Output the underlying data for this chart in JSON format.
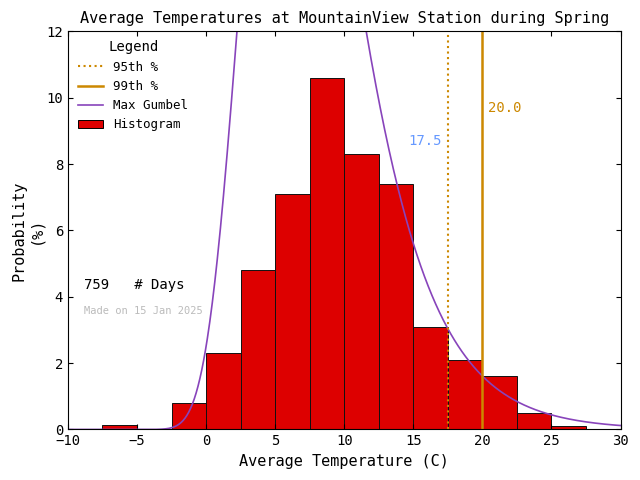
{
  "title": "Average Temperatures at MountainView Station during Spring",
  "xlabel": "Average Temperature (C)",
  "ylabel_line1": "Probability",
  "ylabel_line2": "(%)",
  "xlim": [
    -10,
    30
  ],
  "ylim": [
    0,
    12
  ],
  "yticks": [
    0,
    2,
    4,
    6,
    8,
    10,
    12
  ],
  "xticks": [
    -10,
    -5,
    0,
    5,
    10,
    15,
    20,
    25,
    30
  ],
  "bar_color": "#dd0000",
  "bar_edgecolor": "#111111",
  "hist_bin_edges": [
    -10.0,
    -7.5,
    -5.0,
    -2.5,
    0.0,
    2.5,
    5.0,
    7.5,
    10.0,
    12.5,
    15.0,
    17.5,
    20.0,
    22.5,
    25.0,
    27.5
  ],
  "hist_values": [
    0.0,
    0.12,
    0.0,
    0.8,
    2.3,
    4.8,
    7.1,
    10.6,
    8.3,
    7.4,
    3.1,
    2.1,
    1.6,
    0.5,
    0.1
  ],
  "gumbel_mu": 6.0,
  "gumbel_beta": 3.8,
  "gumbel_scale": 2.5,
  "percentile_95": 17.5,
  "percentile_99": 20.0,
  "n_days": 759,
  "watermark": "Made on 15 Jan 2025",
  "watermark_color": "#bbbbbb",
  "line_95_color": "#cc8800",
  "line_95_linestyle": "dotted",
  "line_99_color": "#cc8800",
  "line_99_linestyle": "solid",
  "text_95_color": "#6699ff",
  "text_99_color": "#cc8800",
  "gumbel_color": "#8844bb",
  "legend_title": "Legend",
  "background_color": "#ffffff",
  "title_fontsize": 11,
  "axis_fontsize": 11,
  "tick_fontsize": 10,
  "legend_fontsize": 9,
  "figwidth": 6.4,
  "figheight": 4.8,
  "dpi": 100
}
